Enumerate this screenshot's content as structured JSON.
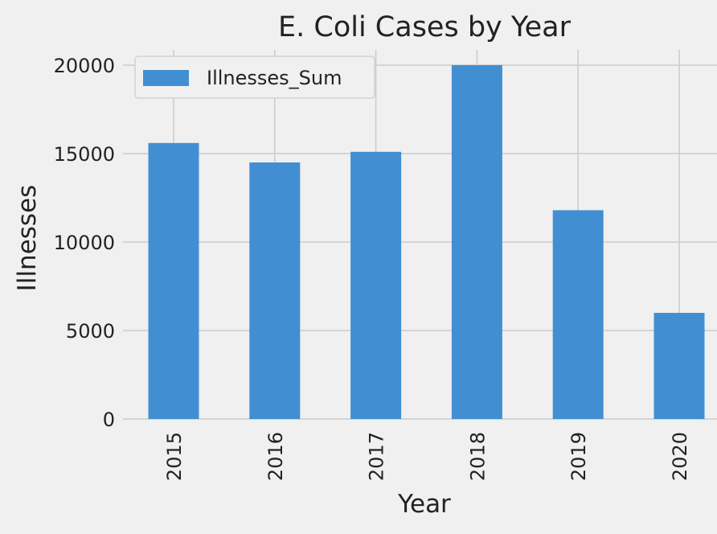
{
  "chart_data": {
    "type": "bar",
    "title": "E. Coli Cases by Year",
    "xlabel": "Year",
    "ylabel": "Illnesses",
    "categories": [
      "2015",
      "2016",
      "2017",
      "2018",
      "2019",
      "2020"
    ],
    "series": [
      {
        "name": "Illnesses_Sum",
        "values": [
          15600,
          14500,
          15100,
          20000,
          11800,
          6000
        ]
      }
    ],
    "ylim": [
      0,
      20000
    ],
    "yticks": [
      "0",
      "5000",
      "10000",
      "15000",
      "20000"
    ],
    "grid": true,
    "legend_position": "top-left",
    "colors": {
      "bar": "#418fd2",
      "background": "#f0f0f0",
      "grid": "#cbcbcb",
      "text": "#222222"
    }
  }
}
